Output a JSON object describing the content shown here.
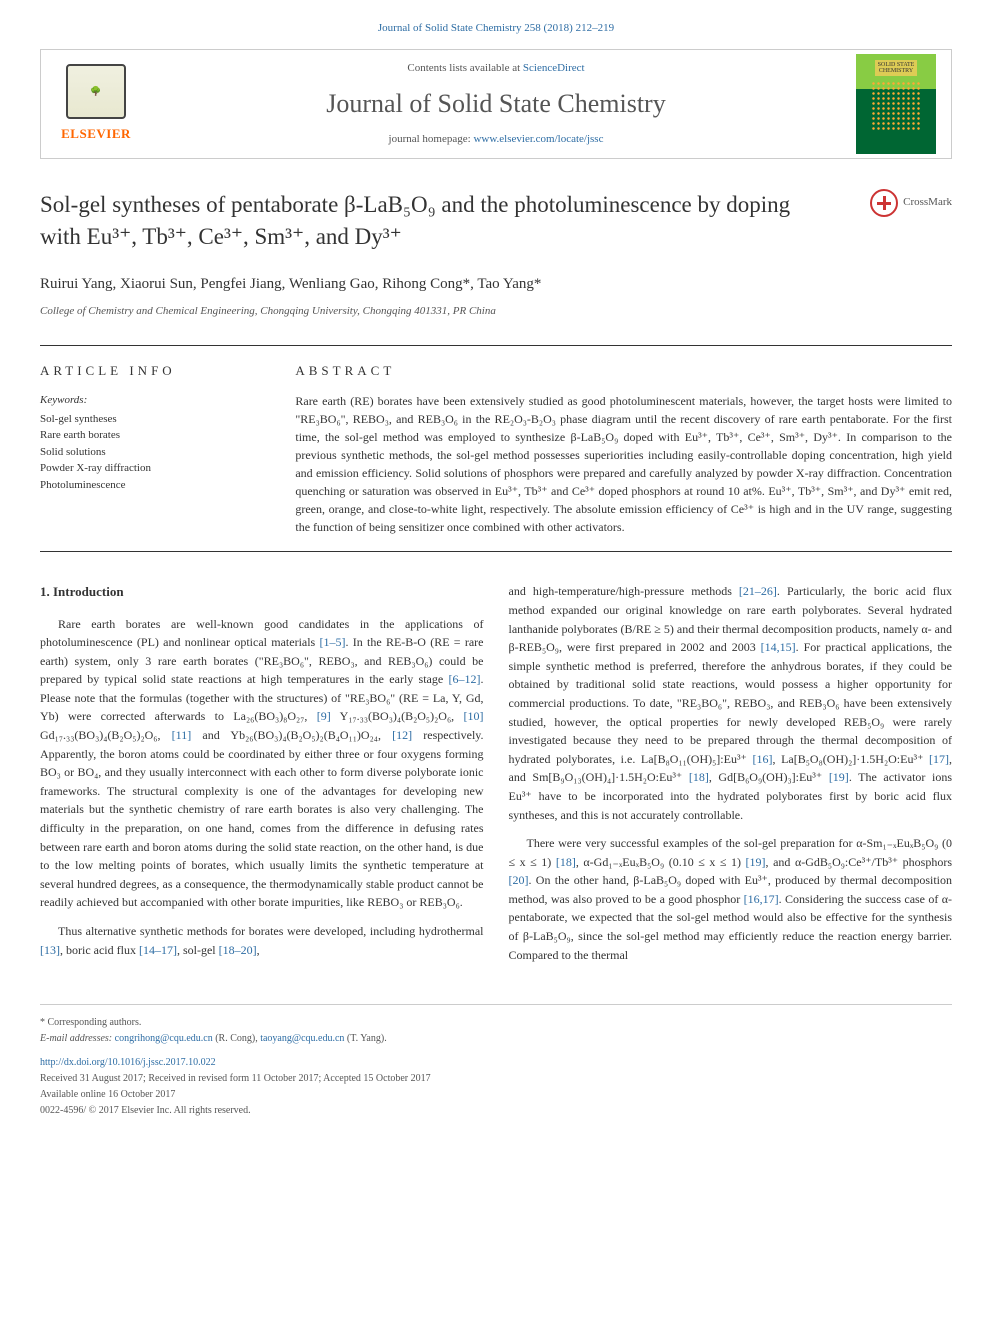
{
  "journal_ref": "Journal of Solid State Chemistry 258 (2018) 212–219",
  "header": {
    "contents_text": "Contents lists available at ",
    "contents_link": "ScienceDirect",
    "journal_title": "Journal of Solid State Chemistry",
    "homepage_label": "journal homepage: ",
    "homepage_url": "www.elsevier.com/locate/jssc",
    "elsevier_label": "ELSEVIER",
    "cover_label_1": "SOLID STATE",
    "cover_label_2": "CHEMISTRY"
  },
  "crossmark_label": "CrossMark",
  "article": {
    "title": "Sol-gel syntheses of pentaborate β-LaB₅O₉ and the photoluminescence by doping with Eu³⁺, Tb³⁺, Ce³⁺, Sm³⁺, and Dy³⁺",
    "authors": "Ruirui Yang, Xiaorui Sun, Pengfei Jiang, Wenliang Gao, Rihong Cong*, Tao Yang*",
    "affiliation": "College of Chemistry and Chemical Engineering, Chongqing University, Chongqing 401331, PR China"
  },
  "article_info": {
    "header": "ARTICLE INFO",
    "keywords_label": "Keywords:",
    "keywords": "Sol-gel syntheses\nRare earth borates\nSolid solutions\nPowder X-ray diffraction\nPhotoluminescence"
  },
  "abstract": {
    "header": "ABSTRACT",
    "text": "Rare earth (RE) borates have been extensively studied as good photoluminescent materials, however, the target hosts were limited to \"RE₃BO₆\", REBO₃, and REB₃O₆ in the RE₂O₃-B₂O₃ phase diagram until the recent discovery of rare earth pentaborate. For the first time, the sol-gel method was employed to synthesize β-LaB₅O₉ doped with Eu³⁺, Tb³⁺, Ce³⁺, Sm³⁺, Dy³⁺. In comparison to the previous synthetic methods, the sol-gel method possesses superiorities including easily-controllable doping concentration, high yield and emission efficiency. Solid solutions of phosphors were prepared and carefully analyzed by powder X-ray diffraction. Concentration quenching or saturation was observed in Eu³⁺, Tb³⁺ and Ce³⁺ doped phosphors at round 10 at%. Eu³⁺, Tb³⁺, Sm³⁺, and Dy³⁺ emit red, green, orange, and close-to-white light, respectively. The absolute emission efficiency of Ce³⁺ is high and in the UV range, suggesting the function of being sensitizer once combined with other activators."
  },
  "introduction": {
    "heading": "1. Introduction",
    "p1_a": "Rare earth borates are well-known good candidates in the applications of photoluminescence (PL) and nonlinear optical materials ",
    "p1_ref1": "[1–5]",
    "p1_b": ". In the RE-B-O (RE = rare earth) system, only 3 rare earth borates (\"RE₃BO₆\", REBO₃, and REB₃O₆) could be prepared by typical solid state reactions at high temperatures in the early stage ",
    "p1_ref2": "[6–12]",
    "p1_c": ". Please note that the formulas (together with the structures) of \"RE₃BO₆\" (RE = La, Y, Gd, Yb) were corrected afterwards to La₂₆(BO₃)₈O₂₇, ",
    "p1_ref3": "[9]",
    "p1_d": " Y₁₇.₃₃(BO₃)₄(B₂O₅)₂O₆, ",
    "p1_ref4": "[10]",
    "p1_e": " Gd₁₇.₃₃(BO₃)₄(B₂O₅)₂O₆, ",
    "p1_ref5": "[11]",
    "p1_f": " and Yb₂₆(BO₃)₄(B₂O₅)₂(B₄O₁₁)O₂₄, ",
    "p1_ref6": "[12]",
    "p1_g": " respectively. Apparently, the boron atoms could be coordinated by either three or four oxygens forming BO₃ or BO₄, and they usually interconnect with each other to form diverse polyborate ionic frameworks. The structural complexity is one of the advantages for developing new materials but the synthetic chemistry of rare earth borates is also very challenging. The difficulty in the preparation, on one hand, comes from the difference in defusing rates between rare earth and boron atoms during the solid state reaction, on the other hand, is due to the low melting points of borates, which usually limits the synthetic temperature at several hundred degrees, as a consequence, the thermodynamically stable product cannot be readily achieved but accompanied with other borate impurities, like REBO₃ or REB₃O₆.",
    "p2_a": "Thus alternative synthetic methods for borates were developed, including hydrothermal ",
    "p2_ref1": "[13]",
    "p2_b": ", boric acid flux ",
    "p2_ref2": "[14–17]",
    "p2_c": ", sol-gel ",
    "p2_ref3": "[18–20]",
    "p2_d": ",",
    "p3_a": "and high-temperature/high-pressure methods ",
    "p3_ref1": "[21–26]",
    "p3_b": ". Particularly, the boric acid flux method expanded our original knowledge on rare earth polyborates. Several hydrated lanthanide polyborates (B/RE ≥ 5) and their thermal decomposition products, namely α- and β-REB₅O₉, were first prepared in 2002 and 2003 ",
    "p3_ref2": "[14,15]",
    "p3_c": ". For practical applications, the simple synthetic method is preferred, therefore the anhydrous borates, if they could be obtained by traditional solid state reactions, would possess a higher opportunity for commercial productions. To date, \"RE₃BO₆\", REBO₃, and REB₃O₆ have been extensively studied, however, the optical properties for newly developed REB₅O₉ were rarely investigated because they need to be prepared through the thermal decomposition of hydrated polyborates, i.e. La[B₈O₁₁(OH)₅]:Eu³⁺ ",
    "p3_ref3": "[16]",
    "p3_d": ", La[B₅O₈(OH)₂]·1.5H₂O:Eu³⁺ ",
    "p3_ref4": "[17]",
    "p3_e": ", and Sm[B₉O₁₃(OH)₄]·1.5H₂O:Eu³⁺ ",
    "p3_ref5": "[18]",
    "p3_f": ", Gd[B₆O₉(OH)₃]:Eu³⁺ ",
    "p3_ref6": "[19]",
    "p3_g": ". The activator ions Eu³⁺ have to be incorporated into the hydrated polyborates first by boric acid flux syntheses, and this is not accurately controllable.",
    "p4_a": "There were very successful examples of the sol-gel preparation for α-Sm₁₋ₓEuₓB₅O₉ (0 ≤ x ≤ 1) ",
    "p4_ref1": "[18]",
    "p4_b": ", α-Gd₁₋ₓEuₓB₅O₉ (0.10 ≤ x ≤ 1) ",
    "p4_ref2": "[19]",
    "p4_c": ", and α-GdB₅O₉:Ce³⁺/Tb³⁺ phosphors ",
    "p4_ref3": "[20]",
    "p4_d": ". On the other hand, β-LaB₅O₉ doped with Eu³⁺, produced by thermal decomposition method, was also proved to be a good phosphor ",
    "p4_ref4": "[16,17]",
    "p4_e": ". Considering the success case of α-pentaborate, we expected that the sol-gel method would also be effective for the synthesis of β-LaB₅O₉, since the sol-gel method may efficiently reduce the reaction energy barrier. Compared to the thermal"
  },
  "footer": {
    "corresp": "* Corresponding authors.",
    "email_label": "E-mail addresses: ",
    "email1": "congrihong@cqu.edu.cn",
    "email1_name": " (R. Cong), ",
    "email2": "taoyang@cqu.edu.cn",
    "email2_name": " (T. Yang).",
    "doi": "http://dx.doi.org/10.1016/j.jssc.2017.10.022",
    "received": "Received 31 August 2017; Received in revised form 11 October 2017; Accepted 15 October 2017",
    "online": "Available online 16 October 2017",
    "copyright": "0022-4596/ © 2017 Elsevier Inc. All rights reserved."
  },
  "colors": {
    "link": "#2e6da4",
    "elsevier_orange": "#ff6600",
    "text": "#333333",
    "cover_green_light": "#88cc44",
    "cover_green_dark": "#006633",
    "crossmark_red": "#cc3333"
  }
}
